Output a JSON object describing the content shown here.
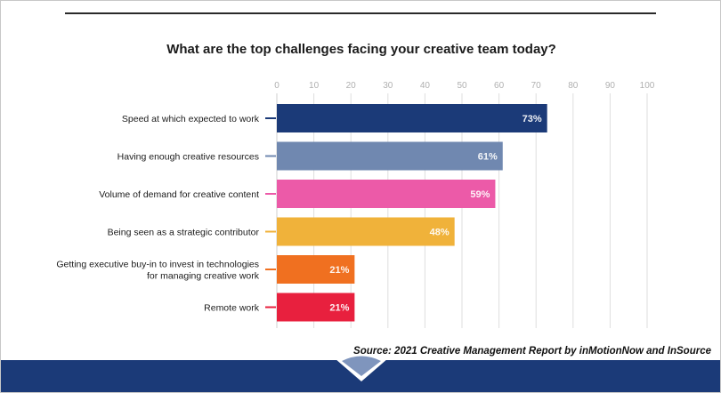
{
  "title": "What are the top challenges facing your creative team today?",
  "source": "Source: 2021 Creative Management Report by inMotionNow and InSource",
  "chart_data": {
    "type": "bar",
    "orientation": "horizontal",
    "title": "What are the top challenges facing your creative team today?",
    "xlim": [
      0,
      100
    ],
    "ticks": [
      0,
      10,
      20,
      30,
      40,
      50,
      60,
      70,
      80,
      90,
      100
    ],
    "grid": true,
    "categories": [
      [
        "Speed at which expected to work"
      ],
      [
        "Having enough creative resources"
      ],
      [
        "Volume of demand for creative content"
      ],
      [
        "Being seen as a strategic contributor"
      ],
      [
        "Getting executive buy-in to invest in technologies",
        "for managing creative work"
      ],
      [
        "Remote work"
      ]
    ],
    "values": [
      73,
      61,
      59,
      48,
      21,
      21
    ],
    "value_labels": [
      "73%",
      "61%",
      "59%",
      "48%",
      "21%",
      "21%"
    ],
    "colors": [
      "#1b3a78",
      "#7088b0",
      "#ec5aa8",
      "#f0b23a",
      "#f07020",
      "#e8203e"
    ]
  }
}
